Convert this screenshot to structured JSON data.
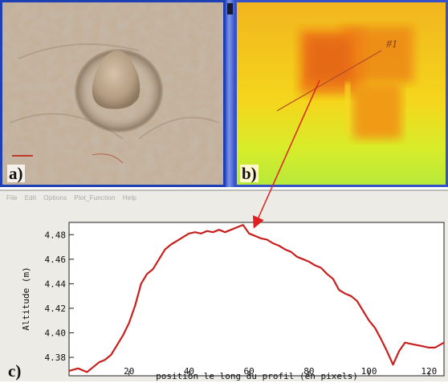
{
  "panels": {
    "a": {
      "label": "a)"
    },
    "b": {
      "label": "b)",
      "profile_label": "#1"
    },
    "c": {
      "label": "c)"
    }
  },
  "menu": {
    "items": [
      "File",
      "Edit",
      "Options",
      "Plot_Function",
      "Help"
    ]
  },
  "colors": {
    "frame": "#1f3fb4",
    "profile_line": "#c81f1f",
    "plot_background": "#ffffff"
  },
  "chart_data": {
    "type": "line",
    "xlabel": "position le long du profil (en pixels)",
    "ylabel": "Altitude (m)",
    "xlim": [
      0,
      125
    ],
    "ylim": [
      4.365,
      4.49
    ],
    "xticks": [
      20,
      40,
      60,
      80,
      100,
      120
    ],
    "yticks": [
      4.38,
      4.4,
      4.42,
      4.44,
      4.46,
      4.48
    ],
    "ytick_labels": [
      "4.38",
      "4.40",
      "4.42",
      "4.44",
      "4.46",
      "4.48"
    ],
    "xtick_labels": [
      "20",
      "40",
      "60",
      "80",
      "100",
      "120"
    ],
    "series": [
      {
        "x": [
          0,
          3,
          6,
          8,
          10,
          12,
          14,
          16,
          18,
          20,
          22,
          24,
          26,
          28,
          30,
          32,
          34,
          36,
          38,
          40,
          42,
          44,
          46,
          48,
          50,
          52,
          54,
          56,
          58,
          60,
          62,
          64,
          66,
          68,
          70,
          72,
          74,
          76,
          78,
          80,
          82,
          84,
          86,
          88,
          90,
          92,
          94,
          96,
          98,
          100,
          102,
          104,
          106,
          108,
          110,
          112,
          114,
          116,
          118,
          120,
          122,
          125
        ],
        "y": [
          4.369,
          4.371,
          4.368,
          4.372,
          4.376,
          4.378,
          4.382,
          4.39,
          4.398,
          4.408,
          4.422,
          4.44,
          4.448,
          4.452,
          4.46,
          4.468,
          4.472,
          4.475,
          4.478,
          4.481,
          4.482,
          4.481,
          4.483,
          4.482,
          4.484,
          4.482,
          4.484,
          4.486,
          4.488,
          4.481,
          4.479,
          4.477,
          4.476,
          4.473,
          4.471,
          4.468,
          4.466,
          4.462,
          4.46,
          4.458,
          4.455,
          4.453,
          4.448,
          4.444,
          4.435,
          4.432,
          4.43,
          4.426,
          4.418,
          4.41,
          4.404,
          4.395,
          4.385,
          4.374,
          4.385,
          4.392,
          4.391,
          4.39,
          4.389,
          4.388,
          4.388,
          4.392
        ]
      }
    ],
    "grid": false
  }
}
